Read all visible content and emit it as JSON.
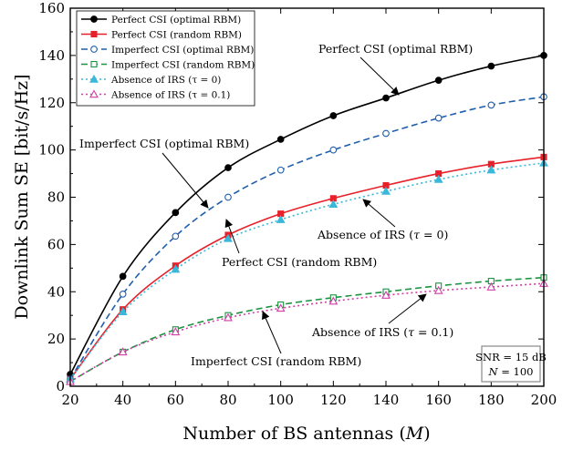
{
  "chart_data": {
    "type": "line",
    "xlabel": "Number of BS antennas (M)",
    "ylabel": "Downlink Sum SE [bit/s/Hz]",
    "xlim": [
      20,
      200
    ],
    "ylim": [
      0,
      160
    ],
    "xticks": [
      20,
      40,
      60,
      80,
      100,
      120,
      140,
      160,
      180,
      200
    ],
    "yticks": [
      0,
      20,
      40,
      60,
      80,
      100,
      120,
      140,
      160
    ],
    "grid": false,
    "legend_position": "top-left",
    "x": [
      20,
      40,
      60,
      80,
      100,
      120,
      140,
      160,
      180,
      200
    ],
    "series": [
      {
        "name": "Perfect CSI (optimal RBM)",
        "values": [
          5,
          46.5,
          73.5,
          92.5,
          104.5,
          114.5,
          122,
          129.5,
          135.5,
          140
        ],
        "color": "#000000",
        "dash": "solid",
        "marker": "filled-circle"
      },
      {
        "name": "Perfect CSI (random RBM)",
        "values": [
          3,
          32.5,
          51,
          64,
          73,
          79.5,
          85,
          90,
          94,
          97
        ],
        "color": "#e8202a",
        "dash": "solid",
        "marker": "filled-square"
      },
      {
        "name": "Imperfect CSI (optimal RBM)",
        "values": [
          3,
          39,
          63.5,
          80,
          91.5,
          100,
          107,
          113.5,
          119,
          122.5
        ],
        "color": "#1f5fad",
        "dash": "dashed",
        "marker": "open-circle"
      },
      {
        "name": "Imperfect CSI (random RBM)",
        "values": [
          2,
          14.5,
          24,
          30,
          34.5,
          37.5,
          40,
          42.5,
          44.5,
          46
        ],
        "color": "#1a9440",
        "dash": "dashed",
        "marker": "open-square"
      },
      {
        "name": "Absence of IRS (τ = 0)",
        "values": [
          3,
          31.5,
          49.5,
          62.5,
          70.5,
          77,
          82.5,
          87.5,
          91.5,
          94.5
        ],
        "color": "#3ab8d9",
        "dash": "dotted",
        "marker": "filled-triangle"
      },
      {
        "name": "Absence of IRS (τ = 0.1)",
        "values": [
          2,
          14.5,
          23,
          29,
          33,
          36,
          38.5,
          40.5,
          42,
          43.5
        ],
        "color": "#d23fa7",
        "dash": "dotted",
        "marker": "open-triangle"
      }
    ],
    "annotations": [
      "Perfect CSI (optimal RBM)",
      "Imperfect CSI (optimal RBM)",
      "Absence of IRS (τ = 0)",
      "Perfect CSI (random RBM)",
      "Absence of IRS (τ = 0.1)",
      "Imperfect CSI (random RBM)"
    ],
    "info_box": [
      "SNR = 15 dB",
      "N = 100"
    ]
  }
}
